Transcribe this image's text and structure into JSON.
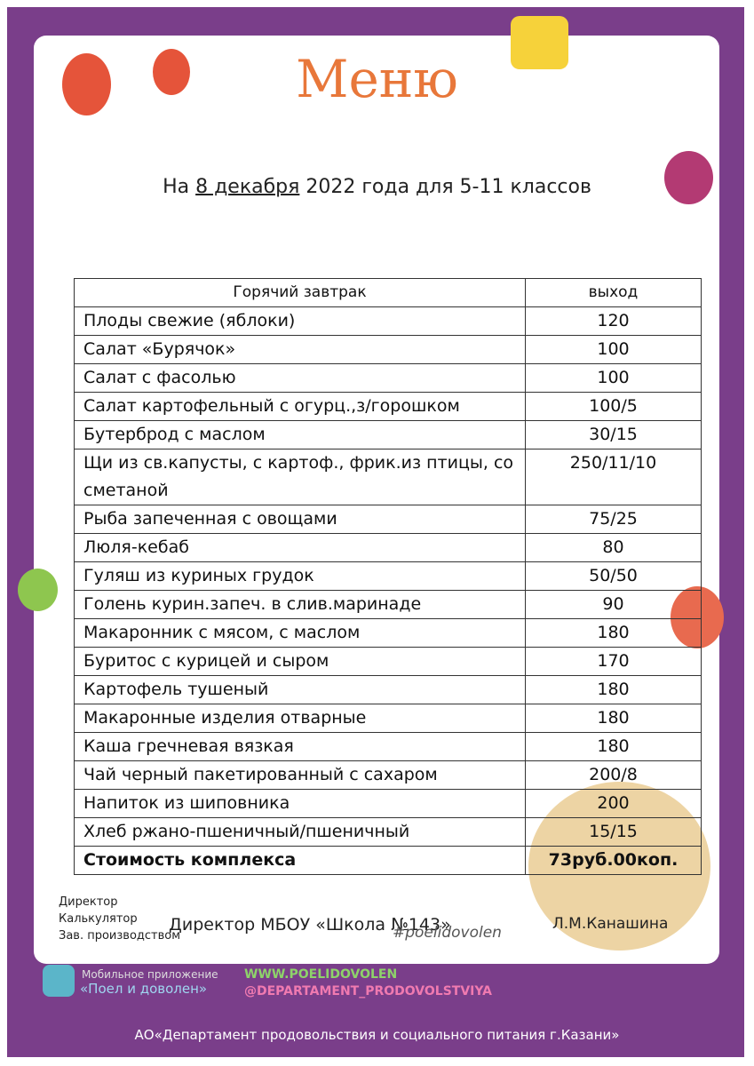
{
  "header": {
    "title": "Меню",
    "date_prefix": "На",
    "date": "8 декабря",
    "date_suffix": "2022 года для 5-11 классов"
  },
  "table": {
    "columns": [
      "Горячий завтрак",
      "выход"
    ],
    "rows": [
      [
        "Плоды свежие (яблоки)",
        "120"
      ],
      [
        "Салат «Бурячок»",
        "100"
      ],
      [
        "Салат с фасолью",
        "100"
      ],
      [
        "Салат картофельный с огурц.,з/горошком",
        "100/5"
      ],
      [
        "Бутерброд с маслом",
        "30/15"
      ],
      [
        "Щи из св.капусты, с картоф., фрик.из птицы, со сметаной",
        "250/11/10"
      ],
      [
        "Рыба запеченная с овощами",
        "75/25"
      ],
      [
        "Люля-кебаб",
        "80"
      ],
      [
        "Гуляш из куриных грудок",
        "50/50"
      ],
      [
        "Голень курин.запеч. в слив.маринаде",
        "90"
      ],
      [
        "Макаронник с мясом, с маслом",
        "180"
      ],
      [
        "Буритос с курицей и сыром",
        "170"
      ],
      [
        "Картофель тушеный",
        "180"
      ],
      [
        "Макаронные изделия отварные",
        "180"
      ],
      [
        "Каша гречневая вязкая",
        "180"
      ],
      [
        "Чай черный пакетированный с сахаром",
        "200/8"
      ],
      [
        "Напиток из шиповника",
        "200"
      ],
      [
        "Хлеб ржано-пшеничный/пшеничный",
        "15/15"
      ]
    ],
    "total": [
      "Стоимость комплекса",
      "73руб.00коп."
    ]
  },
  "signatures": {
    "roles": [
      "Директор",
      "Калькулятор",
      "Зав. производством"
    ],
    "director": "Директор МБОУ «Школа №143»",
    "hashtag": "#poelidovolen",
    "name": "Л.М.Канашина"
  },
  "footer": {
    "app_label": "Мобильное приложение",
    "app_name": "«Поел и доволен»",
    "website": "WWW.POELIDOVOLEN",
    "instagram": "@DEPARTAMENT_PRODOVOLSTVIYA",
    "organization": "АО«Департамент продовольствия и социального питания г.Казани»"
  }
}
